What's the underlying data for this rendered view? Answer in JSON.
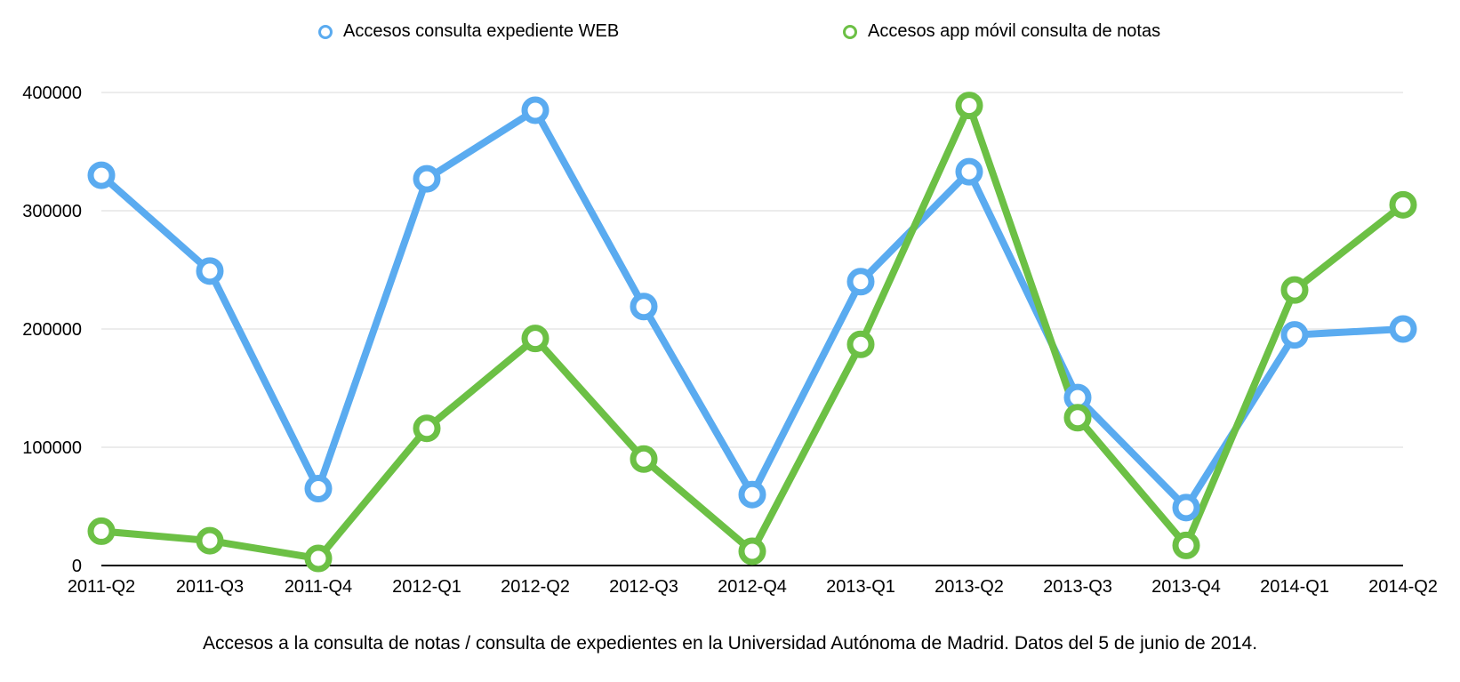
{
  "chart_data": {
    "type": "line",
    "title": "",
    "caption": "Accesos a la consulta de notas / consulta de expedientes en la Universidad Autónoma de Madrid. Datos del 5 de junio de 2014.",
    "xlabel": "",
    "ylabel": "",
    "categories": [
      "2011-Q2",
      "2011-Q3",
      "2011-Q4",
      "2012-Q1",
      "2012-Q2",
      "2012-Q3",
      "2012-Q4",
      "2013-Q1",
      "2013-Q2",
      "2013-Q3",
      "2013-Q4",
      "2014-Q1",
      "2014-Q2"
    ],
    "ylim": [
      0,
      400000
    ],
    "yticks": [
      "0",
      "100000",
      "200000",
      "300000",
      "400000"
    ],
    "grid": true,
    "legend_position": "top",
    "series": [
      {
        "name": "Accesos consulta expediente WEB",
        "color": "#5aabf0",
        "values": [
          330000,
          249000,
          65000,
          327000,
          385000,
          219000,
          60000,
          240000,
          333000,
          142000,
          49000,
          195000,
          200000
        ]
      },
      {
        "name": "Accesos app móvil consulta de notas",
        "color": "#6cc045",
        "values": [
          29000,
          21000,
          6000,
          116000,
          192000,
          90000,
          12000,
          187000,
          389000,
          125000,
          17000,
          233000,
          305000
        ]
      }
    ]
  }
}
